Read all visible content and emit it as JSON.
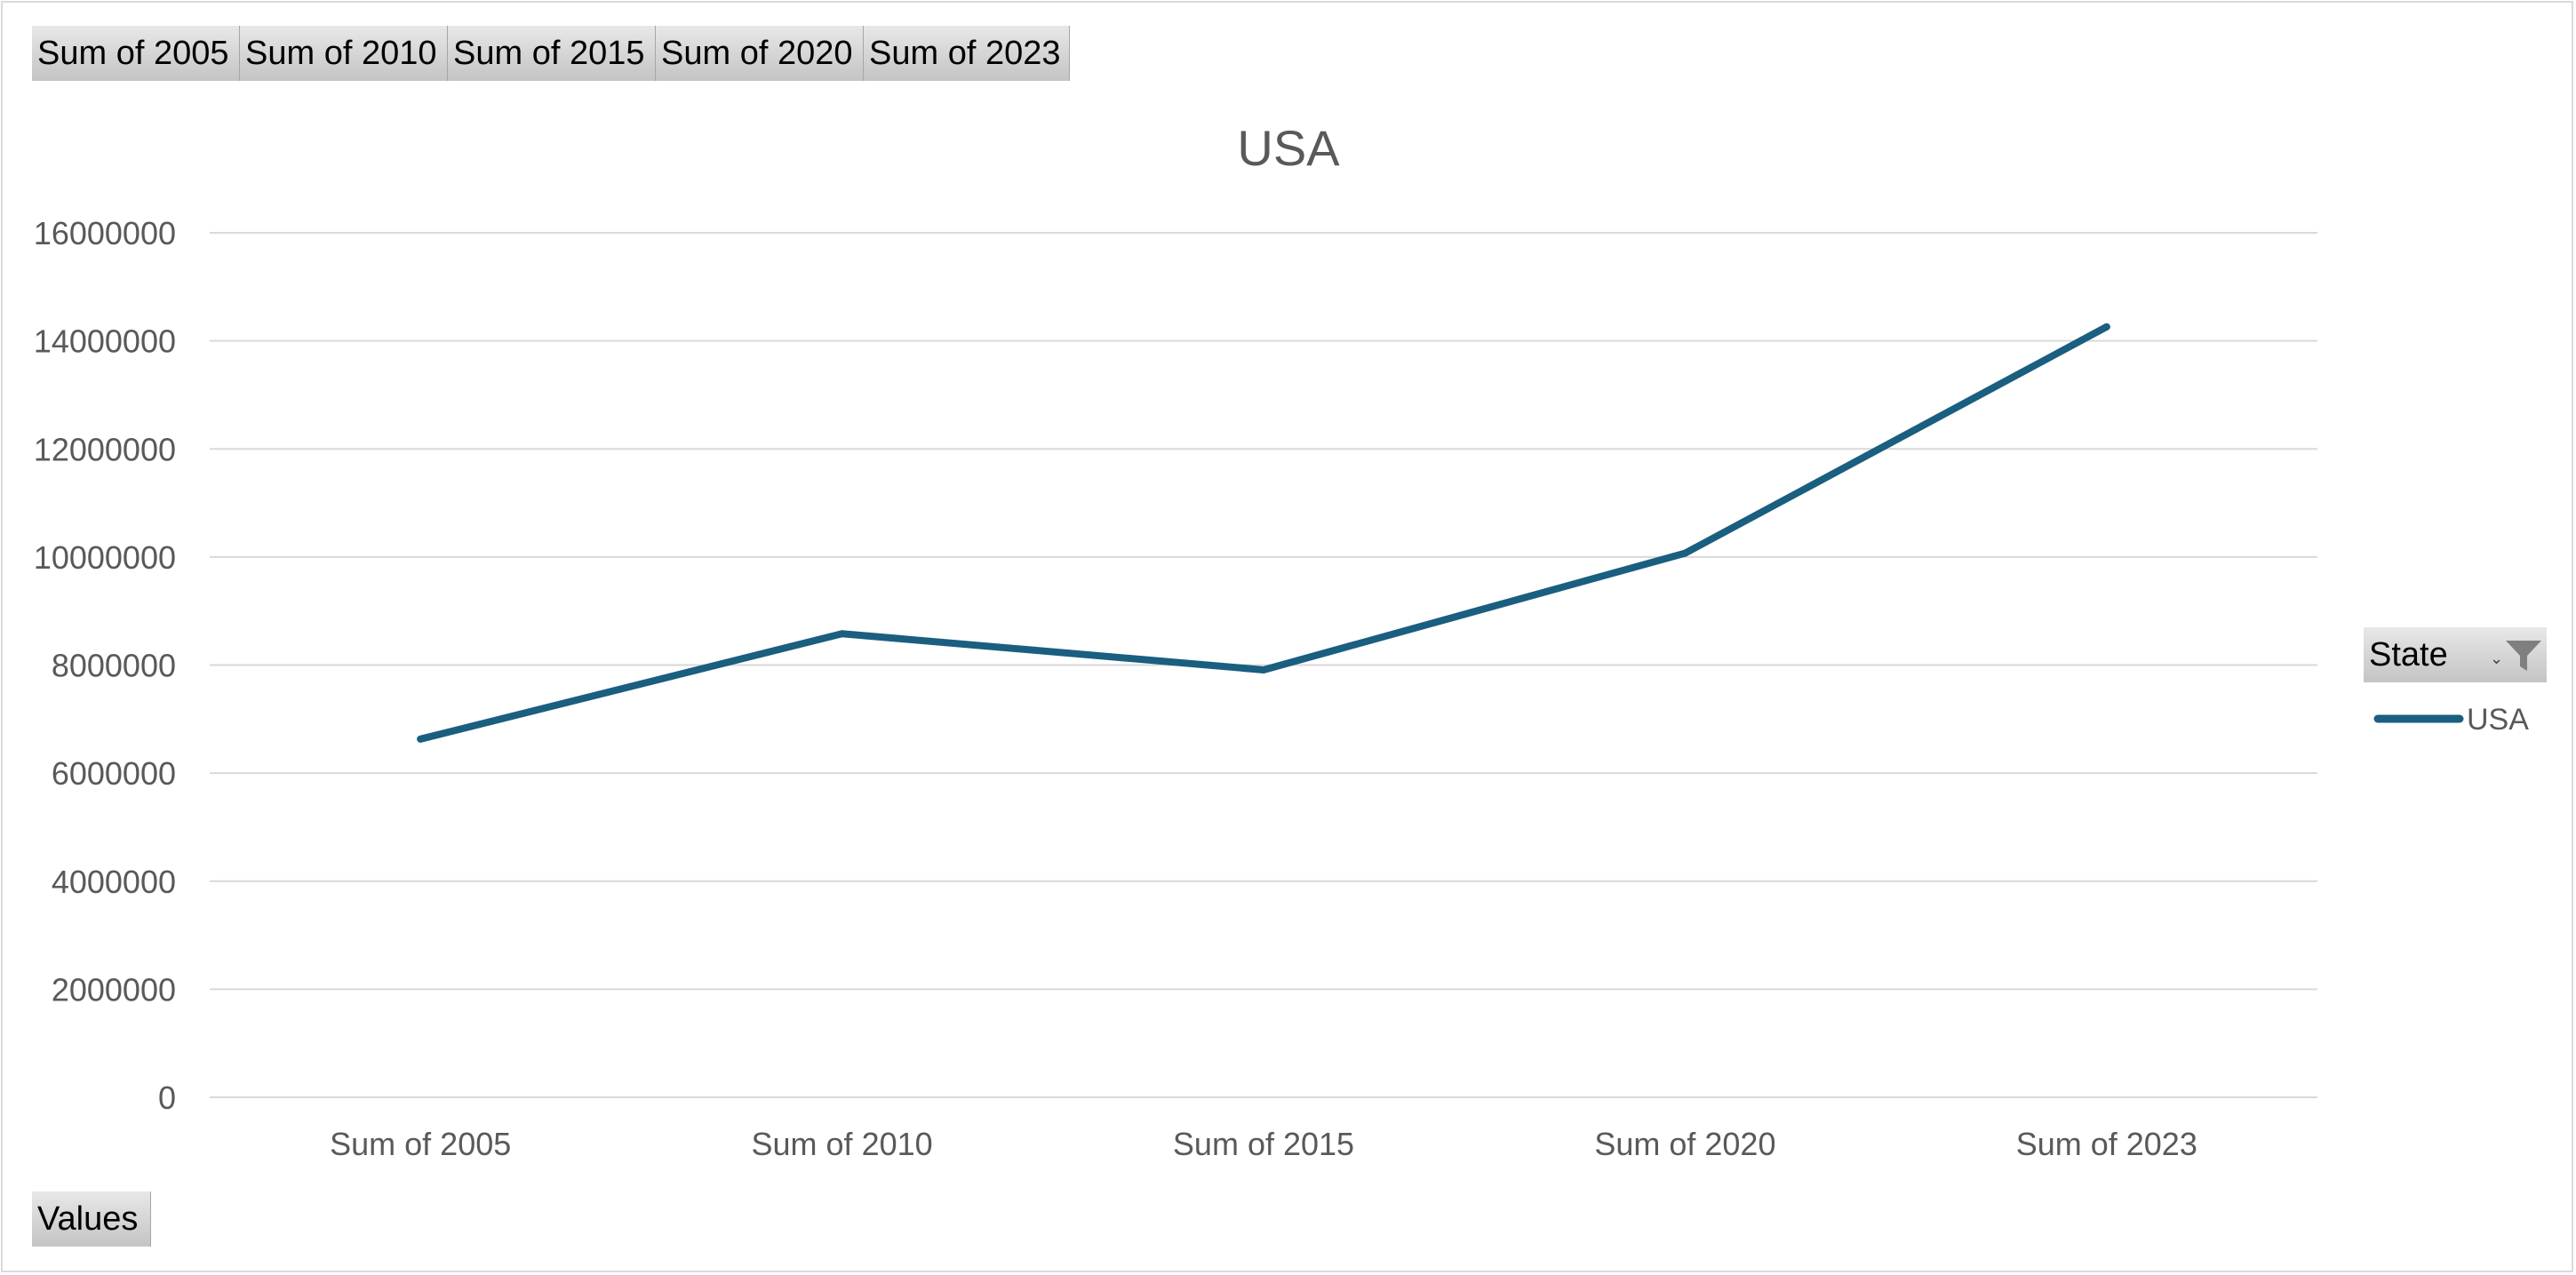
{
  "pivot_fields": {
    "value_buttons": [
      "Sum of 2005",
      "Sum of 2010",
      "Sum of 2015",
      "Sum of 2020",
      "Sum of 2023"
    ],
    "values_button": "Values",
    "legend_field_button": "State"
  },
  "chart_data": {
    "type": "line",
    "title": "USA",
    "categories": [
      "Sum of 2005",
      "Sum of 2010",
      "Sum of 2015",
      "Sum of 2020",
      "Sum of 2023"
    ],
    "series": [
      {
        "name": "USA",
        "values": [
          6630000,
          8580000,
          7910000,
          10070000,
          14260000
        ],
        "color": "#1a5e80"
      }
    ],
    "ylim": [
      0,
      16000000
    ],
    "yticks": [
      "0",
      "2000000",
      "4000000",
      "6000000",
      "8000000",
      "10000000",
      "12000000",
      "14000000",
      "16000000"
    ],
    "grid": true,
    "legend_position": "right",
    "icons": [
      "filter-icon",
      "dropdown-icon"
    ]
  }
}
